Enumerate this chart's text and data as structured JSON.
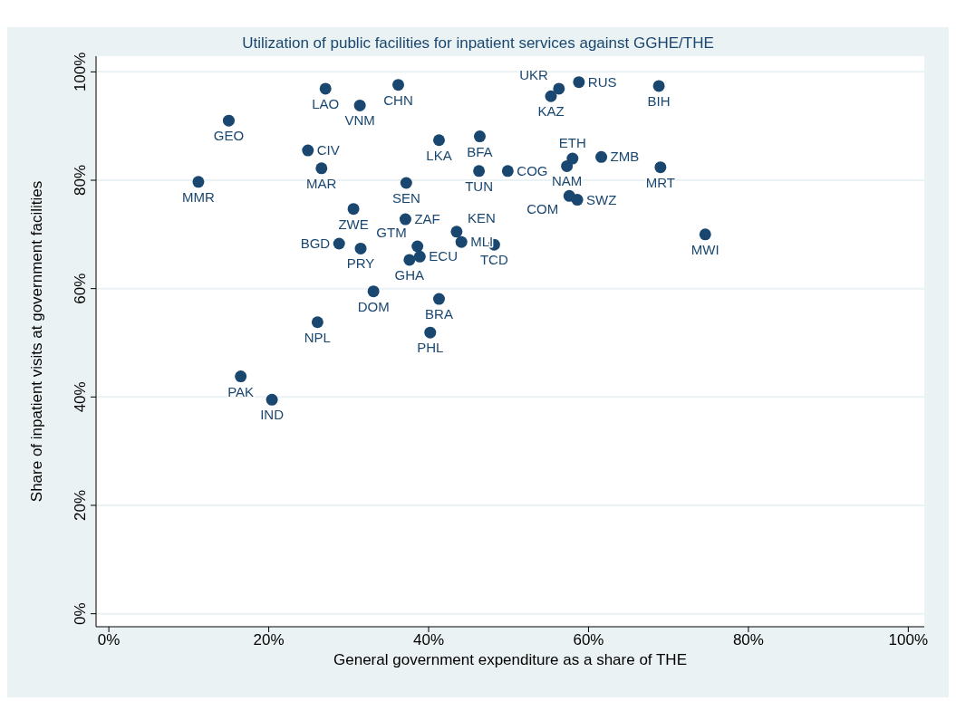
{
  "chart_data": {
    "type": "scatter",
    "title": "Utilization of public facilities for inpatient services against GGHE/THE",
    "xlabel": "General government expenditure as a share of THE",
    "ylabel": "Share of inpatient visits at government facilities",
    "x": [
      11.2,
      15.0,
      16.5,
      20.4,
      24.9,
      26.6,
      27.1,
      26.1,
      28.8,
      30.6,
      31.5,
      31.4,
      33.1,
      36.2,
      37.2,
      37.1,
      37.6,
      38.6,
      38.9,
      40.2,
      41.3,
      41.3,
      43.5,
      44.1,
      46.3,
      46.4,
      48.2,
      49.9,
      55.3,
      56.3,
      58.8,
      58.0,
      57.3,
      61.6,
      57.6,
      58.6,
      68.8,
      69.0,
      74.6
    ],
    "values": [
      79.7,
      91.0,
      43.8,
      39.5,
      85.5,
      82.2,
      96.9,
      53.8,
      68.3,
      74.7,
      67.4,
      93.8,
      59.5,
      97.6,
      79.5,
      72.8,
      65.3,
      67.8,
      65.9,
      51.9,
      58.1,
      87.4,
      70.5,
      68.6,
      81.7,
      88.1,
      68.1,
      81.7,
      95.5,
      96.9,
      98.1,
      84.0,
      82.6,
      84.3,
      77.1,
      76.4,
      97.4,
      82.4,
      70.0
    ],
    "value_labels": [
      "MMR",
      "GEO",
      "PAK",
      "IND",
      "CIV",
      "MAR",
      "LAO",
      "NPL",
      "BGD",
      "ZWE",
      "PRY",
      "VNM",
      "DOM",
      "CHN",
      "SEN",
      "ZAF",
      "GHA",
      "GTM",
      "ECU",
      "PHL",
      "BRA",
      "LKA",
      "KEN",
      "MLI",
      "TUN",
      "BFA",
      "TCD",
      "COG",
      "KAZ",
      "UKR",
      "RUS",
      "ETH",
      "NAM",
      "ZMB",
      "COM",
      "SWZ",
      "BIH",
      "MRT",
      "MWI"
    ],
    "color": "#1a476f",
    "marker": "circle",
    "xlim": [
      -1.6,
      102
    ],
    "ylim": [
      -2.4,
      102.9
    ],
    "xticks": [
      {
        "value": 0,
        "label": "0%"
      },
      {
        "value": 20,
        "label": "20%"
      },
      {
        "value": 40,
        "label": "40%"
      },
      {
        "value": 60,
        "label": "60%"
      },
      {
        "value": 80,
        "label": "80%"
      },
      {
        "value": 100,
        "label": "100%"
      }
    ],
    "yticks": [
      {
        "value": 0,
        "label": "0%"
      },
      {
        "value": 20,
        "label": "20%"
      },
      {
        "value": 40,
        "label": "40%"
      },
      {
        "value": 60,
        "label": "60%"
      },
      {
        "value": 80,
        "label": "80%"
      },
      {
        "value": 100,
        "label": "100%"
      }
    ],
    "grid": "y",
    "legend": false
  }
}
